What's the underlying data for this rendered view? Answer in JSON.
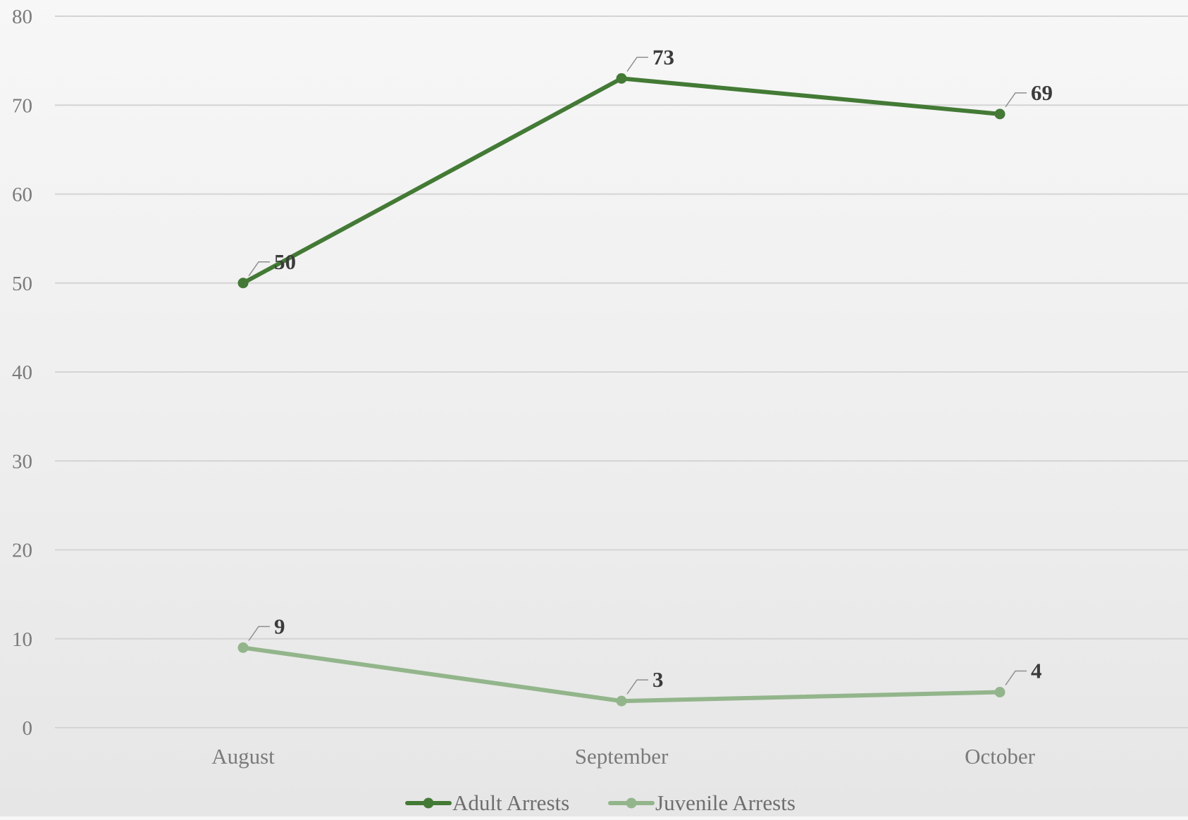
{
  "chart_data": {
    "type": "line",
    "title": "",
    "xlabel": "",
    "ylabel": "",
    "categories": [
      "August",
      "September",
      "October"
    ],
    "ylim": [
      0,
      80
    ],
    "yticks": [
      0,
      10,
      20,
      30,
      40,
      50,
      60,
      70,
      80
    ],
    "grid": true,
    "legend_position": "bottom",
    "series": [
      {
        "name": "Adult Arrests",
        "values": [
          50,
          73,
          69
        ],
        "color": "#437a35"
      },
      {
        "name": "Juvenile Arrests",
        "values": [
          9,
          3,
          4
        ],
        "color": "#93b58b"
      }
    ]
  }
}
